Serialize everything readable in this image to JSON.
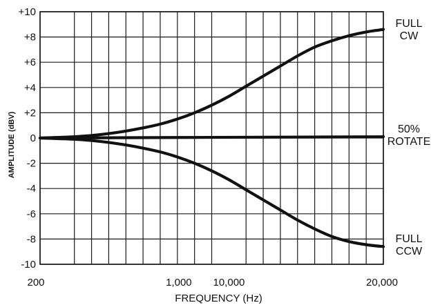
{
  "chart_data": {
    "type": "line",
    "xlabel": "FREQUENCY (Hz)",
    "ylabel": "AMPLITUDE (dBV)",
    "ylim": [
      -10,
      10
    ],
    "y_ticks": [
      "+10",
      "+8",
      "+6",
      "+4",
      "+2",
      "0",
      "-2",
      "-4",
      "-6",
      "-8",
      "-10"
    ],
    "x_ticks": [
      {
        "label": "200",
        "x": 0
      },
      {
        "label": "1,000",
        "x": 9
      },
      {
        "label": "10,000",
        "x": 10
      },
      {
        "label": "20,000",
        "x": 20
      }
    ],
    "grid": true,
    "x_grid": [
      0,
      2,
      3,
      4,
      5,
      6,
      7,
      8,
      9,
      10,
      12,
      13,
      14,
      15,
      16,
      17,
      18,
      19,
      20
    ],
    "series": [
      {
        "name": "FULL CW",
        "label_lines": [
          "FULL",
          "CW"
        ],
        "x": [
          0,
          1,
          2,
          3,
          4,
          5,
          6,
          7,
          8,
          9,
          10,
          11,
          12,
          13,
          14,
          15,
          16,
          17,
          18,
          19,
          20
        ],
        "y": [
          0,
          0.05,
          0.1,
          0.2,
          0.35,
          0.55,
          0.8,
          1.1,
          1.5,
          2.0,
          2.6,
          3.3,
          4.1,
          4.9,
          5.7,
          6.5,
          7.2,
          7.7,
          8.1,
          8.4,
          8.6
        ]
      },
      {
        "name": "50% ROTATE",
        "label_lines": [
          "50%",
          "ROTATE"
        ],
        "x": [
          0,
          20
        ],
        "y": [
          0,
          0.1
        ]
      },
      {
        "name": "FULL CCW",
        "label_lines": [
          "FULL",
          "CCW"
        ],
        "x": [
          0,
          1,
          2,
          3,
          4,
          5,
          6,
          7,
          8,
          9,
          10,
          11,
          12,
          13,
          14,
          15,
          16,
          17,
          18,
          19,
          20
        ],
        "y": [
          0,
          -0.05,
          -0.1,
          -0.2,
          -0.35,
          -0.55,
          -0.8,
          -1.1,
          -1.5,
          -2.0,
          -2.6,
          -3.3,
          -4.1,
          -4.9,
          -5.7,
          -6.5,
          -7.2,
          -7.8,
          -8.2,
          -8.45,
          -8.6
        ]
      }
    ]
  }
}
